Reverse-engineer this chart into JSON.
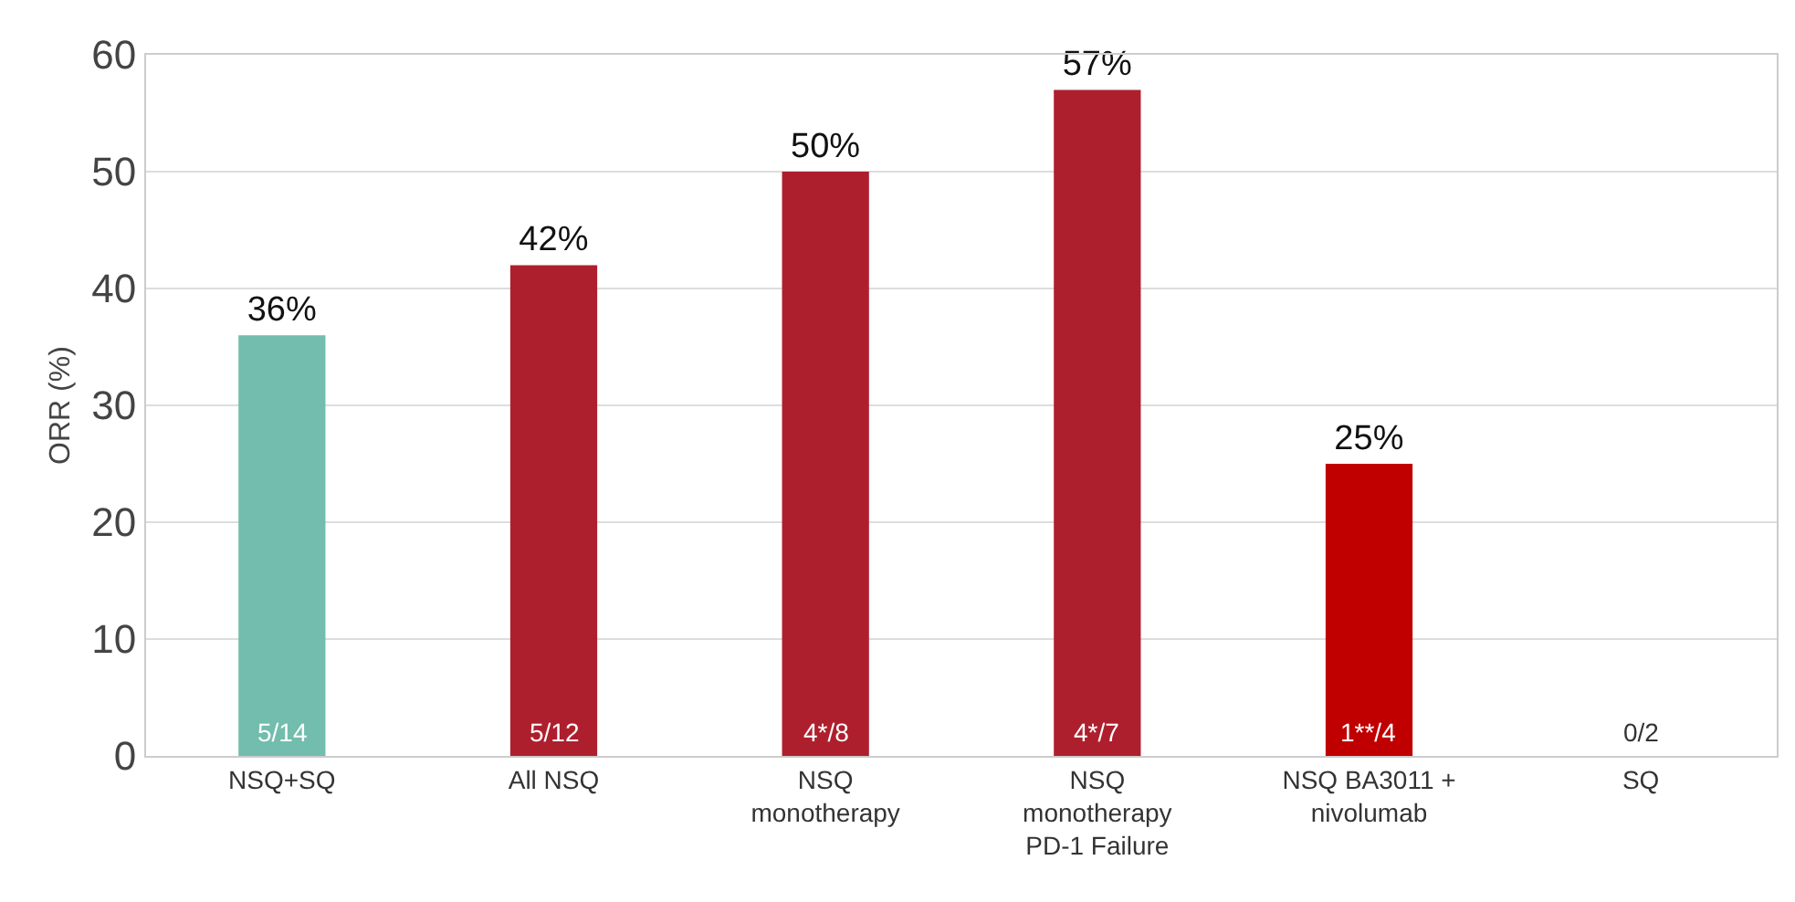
{
  "chart_data": {
    "type": "bar",
    "ylabel": "ORR (%)",
    "categories": [
      "NSQ+SQ",
      "All NSQ",
      "NSQ\nmonotherapy",
      "NSQ\nmonotherapy\nPD-1 Failure",
      "NSQ BA3011 +\nnivolumab",
      "SQ"
    ],
    "values": [
      36,
      42,
      50,
      57,
      25,
      0
    ],
    "colors": [
      "#72bdad",
      "#ae1f2e",
      "#ae1f2e",
      "#ae1f2e",
      "#c00000",
      "#ae1f2e"
    ],
    "value_labels": [
      "36%",
      "42%",
      "50%",
      "57%",
      "25%",
      null
    ],
    "annotations": [
      "5/14",
      "5/12",
      "4*/8",
      "4*/7",
      "1**/4",
      "0/2"
    ],
    "ylim": [
      0,
      60
    ],
    "yticks": [
      0,
      10,
      20,
      30,
      40,
      50,
      60
    ],
    "grid": "y"
  }
}
